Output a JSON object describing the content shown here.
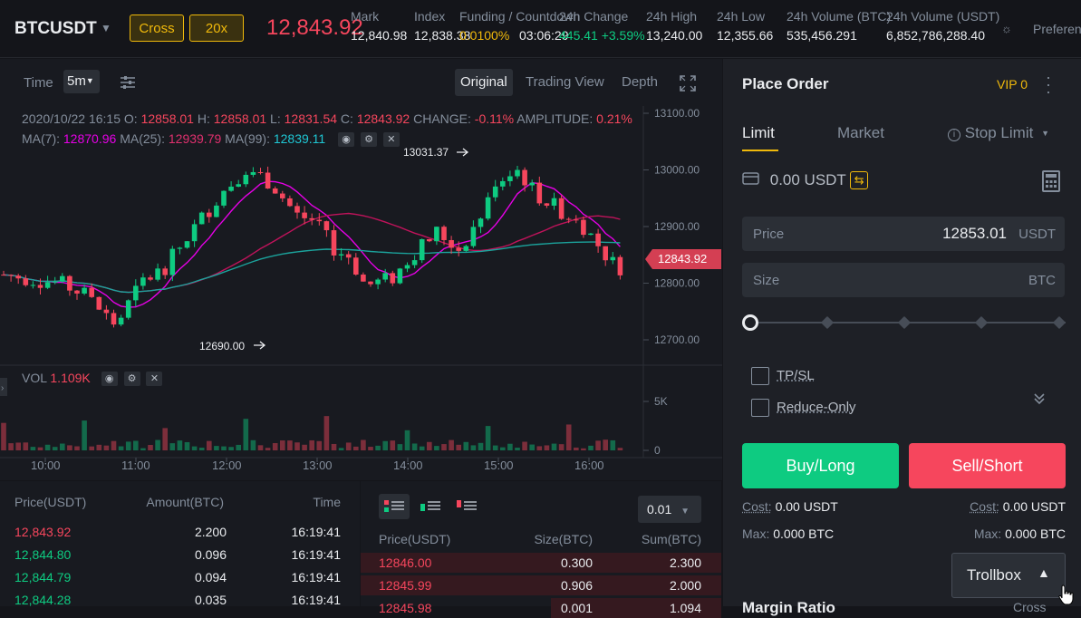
{
  "header": {
    "symbol": "BTCUSDT",
    "margin_mode": "Cross",
    "leverage": "20x",
    "last_price": "12,843.92",
    "stats": [
      {
        "label": "Mark",
        "value": "12,840.98"
      },
      {
        "label": "Index",
        "value": "12,838.38"
      },
      {
        "label": "Funding / Countdown",
        "value": "0.0100%"
      },
      {
        "label": "24h Change",
        "value": "03:06:29"
      },
      {
        "label": "24h High",
        "value": "13,240.00"
      },
      {
        "label": "24h Low",
        "value": "12,355.66"
      },
      {
        "label": "24h Volume (BTC)",
        "value": "535,456.291"
      },
      {
        "label": "24h Volume (USDT)",
        "value": "6,852,786,288.40"
      }
    ],
    "change_value": "445.41 +3.59%",
    "preferences": "Preferences"
  },
  "chart": {
    "toolbar": {
      "time_label": "Time",
      "interval": "5m",
      "views": [
        "Original",
        "Trading View",
        "Depth"
      ],
      "active_view": "Original"
    },
    "ohlc": {
      "date": "2020/10/22 16:15",
      "o_label": "O:",
      "o": "12858.01",
      "h_label": "H:",
      "h": "12858.01",
      "l_label": "L:",
      "l": "12831.54",
      "c_label": "C:",
      "c": "12843.92",
      "change_label": "CHANGE:",
      "change": "-0.11%",
      "amp_label": "AMPLITUDE:",
      "amp": "0.21%"
    },
    "ma": {
      "ma7_label": "MA(7):",
      "ma7": "12870.96",
      "ma25_label": "MA(25):",
      "ma25": "12939.79",
      "ma99_label": "MA(99):",
      "ma99": "12839.11"
    },
    "vol": {
      "label": "VOL",
      "value": "1.109K"
    },
    "price_ticks": [
      "13100.00",
      "13000.00",
      "12900.00",
      "12800.00",
      "12700.00"
    ],
    "vol_ticks": [
      "5K",
      "0"
    ],
    "time_ticks": [
      "10:00",
      "11:00",
      "12:00",
      "13:00",
      "14:00",
      "15:00",
      "16:00"
    ],
    "high_marker": "13031.37",
    "low_marker": "12690.00",
    "current_price_tag": "12843.92",
    "colors": {
      "up": "#0ecb81",
      "down": "#f6465d",
      "ma7": "#e600e6",
      "ma25": "#c0135b",
      "ma99": "#1ba39c"
    }
  },
  "trades": {
    "headers": [
      "Price(USDT)",
      "Amount(BTC)",
      "Time"
    ],
    "rows": [
      {
        "price": "12,843.92",
        "amount": "2.200",
        "time": "16:19:41",
        "side": "sell"
      },
      {
        "price": "12,844.80",
        "amount": "0.096",
        "time": "16:19:41",
        "side": "buy"
      },
      {
        "price": "12,844.79",
        "amount": "0.094",
        "time": "16:19:41",
        "side": "buy"
      },
      {
        "price": "12,844.28",
        "amount": "0.035",
        "time": "16:19:41",
        "side": "buy"
      }
    ]
  },
  "orderbook": {
    "precision": "0.01",
    "headers": [
      "Price(USDT)",
      "Size(BTC)",
      "Sum(BTC)"
    ],
    "rows": [
      {
        "price": "12846.00",
        "size": "0.300",
        "sum": "2.300"
      },
      {
        "price": "12845.99",
        "size": "0.906",
        "sum": "2.000"
      },
      {
        "price": "12845.98",
        "size": "0.001",
        "sum": "1.094"
      }
    ]
  },
  "order": {
    "title": "Place Order",
    "vip": "VIP 0",
    "tabs": [
      "Limit",
      "Market",
      "Stop Limit"
    ],
    "balance": "0.00 USDT",
    "price_label": "Price",
    "price_value": "12853.01",
    "price_unit": "USDT",
    "size_label": "Size",
    "size_unit": "BTC",
    "size_value": "",
    "tpsl": "TP/SL",
    "reduce_only": "Reduce-Only",
    "buy_label": "Buy/Long",
    "sell_label": "Sell/Short",
    "cost_label": "Cost:",
    "cost_buy": "0.00 USDT",
    "cost_sell": "0.00 USDT",
    "max_label": "Max:",
    "max_buy": "0.000 BTC",
    "max_sell": "0.000 BTC",
    "trollbox": "Trollbox",
    "bottom_cut": "Margin Ratio",
    "bottom_cut_right": "Cross"
  }
}
